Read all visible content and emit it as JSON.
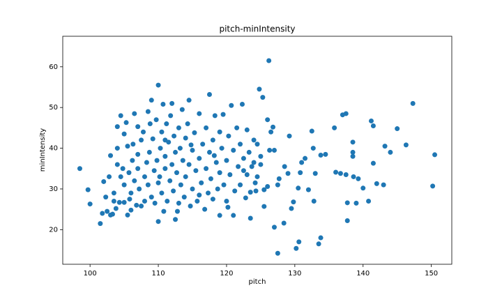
{
  "chart_data": {
    "type": "scatter",
    "title": "pitch-minIntensity",
    "x_label": "pitch",
    "y_label": "minIntensity",
    "color": "#1f77b4",
    "xlim": [
      96,
      153
    ],
    "ylim": [
      11.5,
      67.5
    ],
    "xticks": [
      100,
      110,
      120,
      130,
      140,
      150
    ],
    "yticks": [
      20,
      30,
      40,
      50,
      60
    ],
    "x": [
      98.5,
      99.7,
      100,
      101.5,
      101.8,
      102.5,
      103,
      150.5,
      150.2,
      147.3,
      146.3,
      145,
      144,
      143.2,
      143,
      142,
      141.5,
      141.2,
      141.5,
      140.8,
      140,
      139.3,
      139,
      138.5,
      138.5,
      138.5,
      138.6,
      137.5,
      137.7,
      137.7,
      137.5,
      137,
      136.7,
      136,
      135.8,
      134.5,
      133.8,
      133.5,
      133.8,
      133,
      132.7,
      132.5,
      132.8,
      132,
      131.5,
      131,
      130.8,
      130.5,
      130.6,
      130.2,
      129.8,
      129.5,
      129.2,
      129,
      128.5,
      128.4,
      127.7,
      127.5,
      127.5,
      127,
      126.8,
      127,
      126.3,
      126.5,
      126.2,
      126,
      126,
      125.3,
      124.8,
      125.5,
      125.5,
      125,
      125,
      124.5,
      124.5,
      124.3,
      123.5,
      123.7,
      103,
      103.5,
      103.5,
      104,
      104,
      104,
      104.3,
      104.5,
      104.5,
      104.8,
      105,
      105,
      105,
      105.3,
      105.5,
      105.7,
      105.8,
      106,
      106,
      106.2,
      106.3,
      106.5,
      106.5,
      106.8,
      107,
      107,
      107.2,
      107.5,
      107.5,
      107.8,
      108,
      108,
      108.3,
      108.5,
      108.5,
      108.7,
      109,
      109,
      109.2,
      109.4,
      109.5,
      109.7,
      109.8,
      110,
      110,
      110,
      110.3,
      110.5,
      110.5,
      110.7,
      110.8,
      111,
      111,
      111.2,
      111.3,
      111.5,
      111.7,
      111.8,
      112,
      112,
      112.2,
      112.3,
      112.5,
      112.5,
      112.7,
      113,
      113,
      113.2,
      113.3,
      113.5,
      113.6,
      113.8,
      114,
      114,
      114.3,
      114.5,
      114.5,
      114.7,
      115,
      115,
      115.3,
      115.5,
      115.7,
      116,
      116,
      116.3,
      116.5,
      116.8,
      117,
      117,
      117.3,
      117.5,
      117.5,
      117.7,
      118,
      118,
      118.3,
      118.5,
      118.7,
      119,
      119,
      119,
      119.3,
      119.5,
      119.6,
      120,
      120,
      120.3,
      120.5,
      120.7,
      121,
      121,
      121.2,
      121.5,
      121.7,
      122,
      122,
      122.3,
      122.5,
      122.8,
      123,
      123,
      123.3,
      123.5,
      124,
      124,
      124.2,
      103.3,
      102,
      102.3,
      102.8,
      103.8,
      105.5,
      107,
      108.8,
      110.2,
      111,
      112.8,
      114.8,
      116,
      118.2,
      120.2,
      122.5
    ],
    "series": [
      {
        "name": "minIntensity",
        "values": [
          35,
          29.8,
          26.3,
          21.5,
          24,
          24.5,
          23.6,
          38.4,
          30.7,
          51,
          40.8,
          44.8,
          39,
          40.5,
          31,
          31.3,
          45.5,
          46.7,
          36.3,
          27,
          30.2,
          32.5,
          26.5,
          38,
          39,
          41.5,
          33,
          33.5,
          26.6,
          22.2,
          48.5,
          48.2,
          33.8,
          34.1,
          45,
          38.5,
          38.3,
          16.5,
          18,
          33.8,
          40,
          44.2,
          27,
          29.8,
          37.5,
          36.5,
          34,
          30.2,
          17,
          15.4,
          26.8,
          25.2,
          43,
          33.8,
          35.5,
          21.6,
          32.5,
          31,
          14.2,
          20.6,
          45.2,
          39.5,
          39.5,
          44,
          61.5,
          47,
          30.6,
          52.5,
          54.5,
          29.8,
          25.7,
          36,
          38,
          41,
          33,
          29.5,
          22.8,
          35.5,
          38.2,
          29,
          27,
          40,
          45.3,
          36,
          26.7,
          48,
          33,
          35,
          26.7,
          31,
          43.5,
          46.3,
          40.5,
          34,
          27.5,
          24.8,
          29,
          37,
          41,
          32,
          48.5,
          26,
          35,
          38.5,
          30,
          42,
          25.8,
          44,
          33,
          27,
          36.5,
          49,
          31,
          39,
          51.8,
          28,
          42.3,
          34.5,
          26.5,
          47,
          37,
          55.5,
          22,
          31.5,
          40,
          44,
          29,
          50.8,
          24.5,
          35,
          38,
          46,
          27,
          41.5,
          32,
          48,
          36,
          51,
          29.5,
          43,
          39,
          22.5,
          34,
          45,
          26.5,
          40,
          31,
          49.5,
          37,
          28,
          42.5,
          33,
          46,
          51.8,
          36,
          25.8,
          39.5,
          30,
          43.8,
          34.5,
          27,
          48.5,
          37.5,
          31.5,
          41,
          25,
          45,
          35,
          29,
          53.2,
          39,
          32.5,
          42,
          27.5,
          48,
          36.5,
          30,
          23.5,
          44,
          34,
          40,
          48.3,
          31,
          37,
          27,
          43,
          33.5,
          50.5,
          23.5,
          39.5,
          29.5,
          45,
          35.5,
          41,
          31,
          50.8,
          37.5,
          27.8,
          44.5,
          33.5,
          39,
          29.2,
          42,
          36.5,
          31.5,
          23.8,
          31.8,
          28,
          33,
          25.2,
          23.6,
          45.3,
          46,
          33,
          42,
          24.5,
          40.8,
          28.5,
          38.2,
          25.5,
          34.5
        ]
      }
    ]
  }
}
